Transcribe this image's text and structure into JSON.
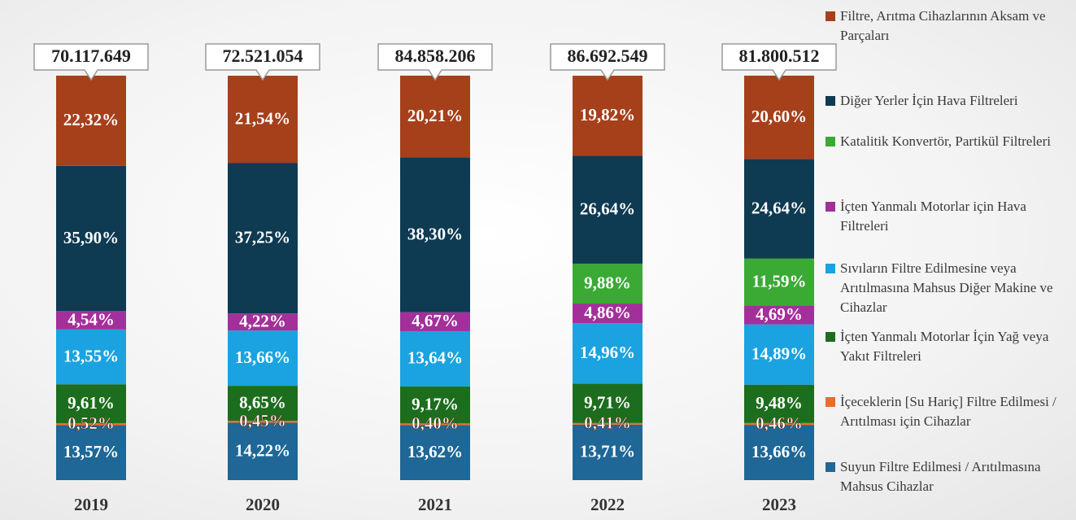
{
  "chart_data": {
    "type": "stacked_bar",
    "categories": [
      "2019",
      "2020",
      "2021",
      "2022",
      "2023"
    ],
    "ylim": [
      0,
      100
    ],
    "totals": {
      "values": [
        70117649,
        72521054,
        84858206,
        86692549,
        81800512
      ],
      "value_labels": [
        "70.117.649",
        "72.521.054",
        "84.858.206",
        "86.692.549",
        "81.800.512"
      ]
    },
    "series": [
      {
        "name": "Suyun Filtre Edilmesi / Arıtılmasına Mahsus Cihazlar",
        "color": "#1e6796",
        "values": [
          13.57,
          14.22,
          13.62,
          13.71,
          13.66
        ],
        "value_labels": [
          "13,57%",
          "14,22%",
          "13,62%",
          "13,71%",
          "13,66%"
        ]
      },
      {
        "name": "İçeceklerin [Su Hariç] Filtre Edilmesi / Arıtılması için Cihazlar",
        "color": "#ed6b2a",
        "values": [
          0.52,
          0.45,
          0.4,
          0.41,
          0.46
        ],
        "value_labels": [
          "0,52%",
          "0,45%",
          "0,40%",
          "0,41%",
          "0,46%"
        ]
      },
      {
        "name": "İçten Yanmalı Motorlar İçin Yağ veya Yakıt Filtreleri",
        "color": "#1d6d1e",
        "values": [
          9.61,
          8.65,
          9.17,
          9.71,
          9.48
        ],
        "value_labels": [
          "9,61%",
          "8,65%",
          "9,17%",
          "9,71%",
          "9,48%"
        ]
      },
      {
        "name": "Sıvıların Filtre Edilmesine veya Arıtılmasına Mahsus Diğer Makine ve Cihazlar",
        "color": "#1aa3e0",
        "values": [
          13.55,
          13.66,
          13.64,
          14.96,
          14.89
        ],
        "value_labels": [
          "13,55%",
          "13,66%",
          "13,64%",
          "14,96%",
          "14,89%"
        ]
      },
      {
        "name": "İçten Yanmalı Motorlar için Hava Filtreleri",
        "color": "#a3309a",
        "values": [
          4.54,
          4.22,
          4.67,
          4.86,
          4.69
        ],
        "value_labels": [
          "4,54%",
          "4,22%",
          "4,67%",
          "4,86%",
          "4,69%"
        ]
      },
      {
        "name": "Katalitik Konvertör, Partikül Filtreleri",
        "color": "#3aaa35",
        "values": [
          null,
          null,
          null,
          9.88,
          11.59
        ],
        "value_labels": [
          null,
          null,
          null,
          "9,88%",
          "11,59%"
        ]
      },
      {
        "name": "Diğer Yerler İçin Hava Filtreleri",
        "color": "#0e3a52",
        "values": [
          35.9,
          37.25,
          38.3,
          26.64,
          24.64
        ],
        "value_labels": [
          "35,90%",
          "37,25%",
          "38,30%",
          "26,64%",
          "24,64%"
        ]
      },
      {
        "name": "Filtre, Arıtma Cihazlarının Aksam ve Parçaları",
        "color": "#a5401b",
        "values": [
          22.32,
          21.54,
          20.21,
          19.82,
          20.6
        ],
        "value_labels": [
          "22,32%",
          "21,54%",
          "20,21%",
          "19,82%",
          "20,60%"
        ]
      }
    ]
  }
}
